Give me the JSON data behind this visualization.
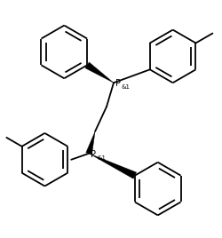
{
  "background_color": "#ffffff",
  "line_color": "#000000",
  "line_width": 1.3,
  "figsize": [
    2.51,
    2.68
  ],
  "dpi": 100,
  "font_size_P": 7,
  "font_size_label": 5.0
}
